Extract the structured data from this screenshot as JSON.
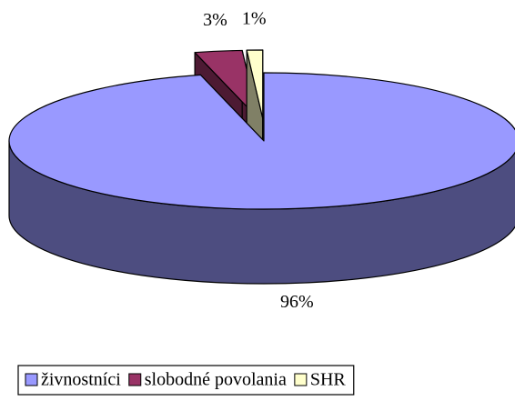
{
  "chart_data": {
    "type": "pie",
    "categories": [
      "živnostníci",
      "slobodné povolania",
      "SHR"
    ],
    "values": [
      96,
      3,
      1
    ],
    "value_labels": [
      "96%",
      "3%",
      "1%"
    ],
    "colors": [
      "#9999ff",
      "#993366",
      "#ffffcc"
    ],
    "legend": "bottom"
  }
}
